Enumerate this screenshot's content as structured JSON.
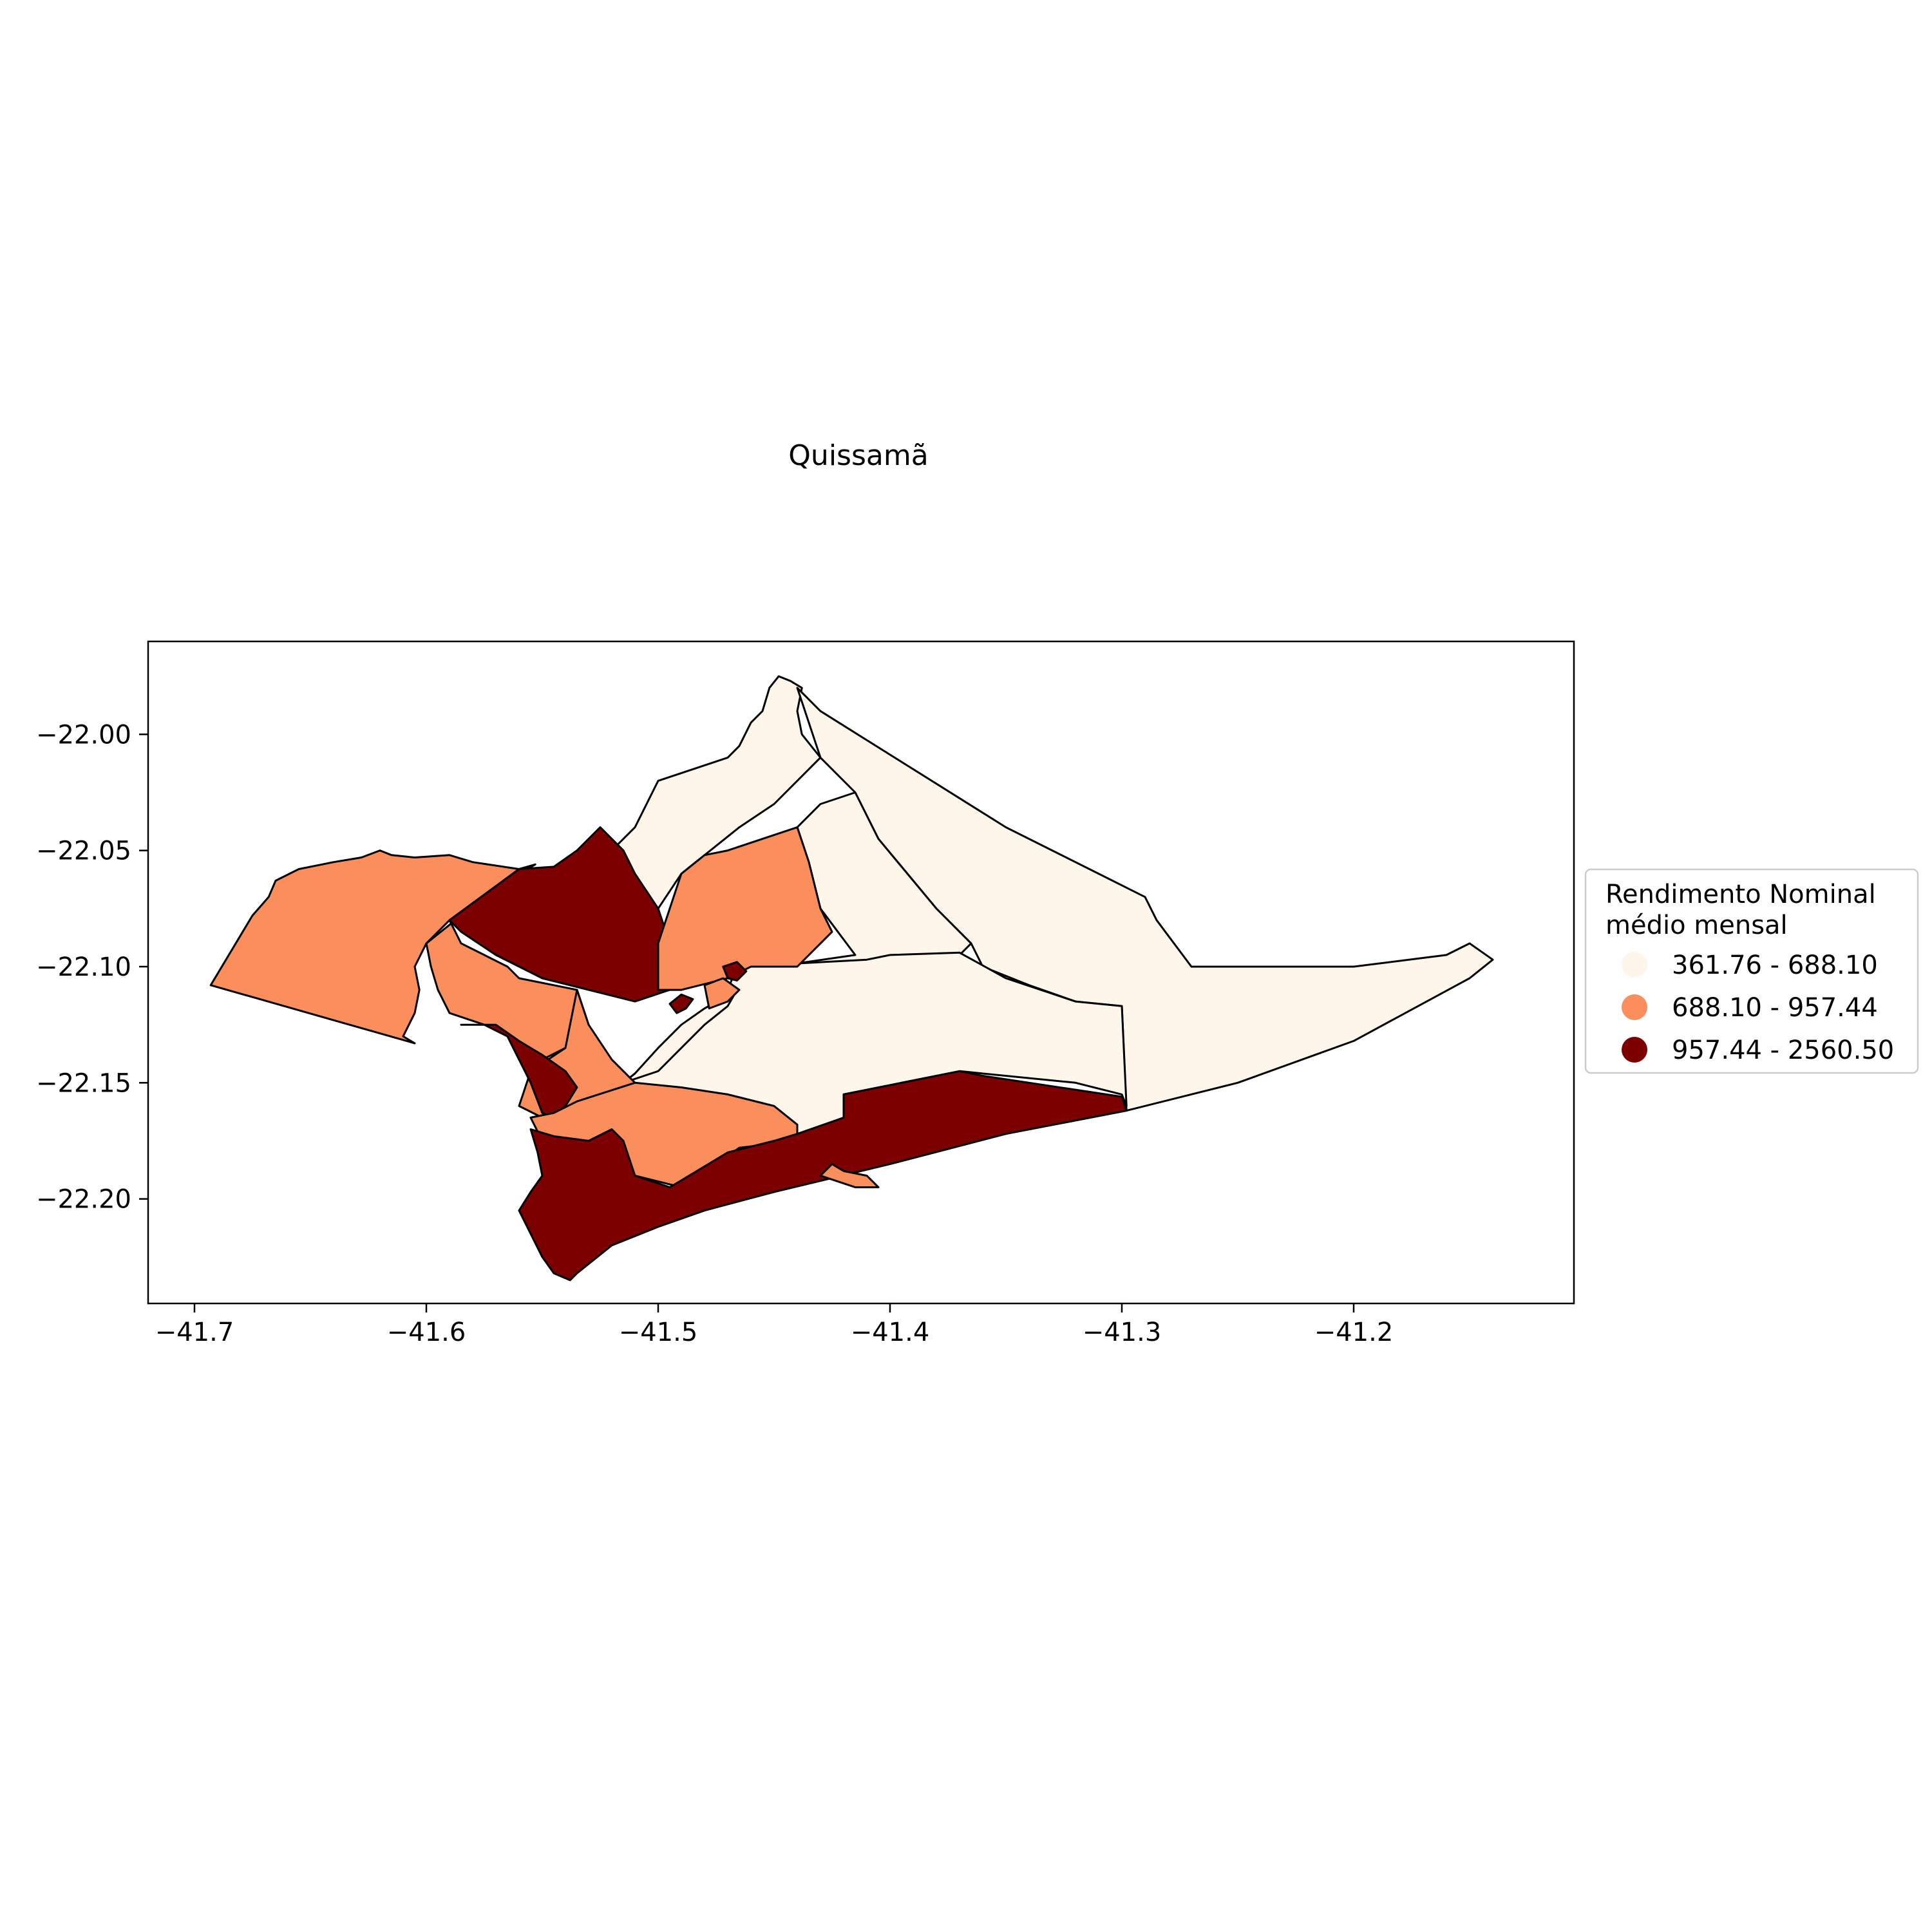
{
  "title": "Quissamã",
  "chart_data": {
    "type": "choropleth",
    "title": "Quissamã",
    "xlabel": "",
    "ylabel": "",
    "xlim": [
      -41.72,
      -41.105
    ],
    "ylim": [
      -22.245,
      -21.96
    ],
    "x_ticks": [
      {
        "value": -41.7,
        "label": "−41.7"
      },
      {
        "value": -41.6,
        "label": "−41.6"
      },
      {
        "value": -41.5,
        "label": "−41.5"
      },
      {
        "value": -41.4,
        "label": "−41.4"
      },
      {
        "value": -41.3,
        "label": "−41.3"
      },
      {
        "value": -41.2,
        "label": "−41.2"
      }
    ],
    "y_ticks": [
      {
        "value": -22.0,
        "label": "−22.00"
      },
      {
        "value": -22.05,
        "label": "−22.05"
      },
      {
        "value": -22.1,
        "label": "−22.10"
      },
      {
        "value": -22.15,
        "label": "−22.15"
      },
      {
        "value": -22.2,
        "label": "−22.20"
      }
    ],
    "grid": false,
    "legend": {
      "title": "Rendimento Nominal\nmédio mensal",
      "placement": "right",
      "entries": [
        {
          "label": "361.76 - 688.10",
          "color": "#fef6eb"
        },
        {
          "label": "688.10 - 957.44",
          "color": "#fa8f5d"
        },
        {
          "label": "957.44 - 2560.50",
          "color": "#7d0000"
        }
      ]
    },
    "regions": [
      {
        "class": 0,
        "coords": [
          [
            -41.51,
            -22.04
          ],
          [
            -41.5,
            -22.02
          ],
          [
            -41.47,
            -22.01
          ],
          [
            -41.465,
            -22.005
          ],
          [
            -41.46,
            -21.995
          ],
          [
            -41.455,
            -21.99
          ],
          [
            -41.452,
            -21.98
          ],
          [
            -41.448,
            -21.975
          ],
          [
            -41.443,
            -21.977
          ],
          [
            -41.438,
            -21.98
          ],
          [
            -41.44,
            -21.99
          ],
          [
            -41.438,
            -22.0
          ],
          [
            -41.43,
            -22.01
          ],
          [
            -41.45,
            -22.03
          ],
          [
            -41.465,
            -22.04
          ],
          [
            -41.49,
            -22.06
          ],
          [
            -41.5,
            -22.075
          ],
          [
            -41.52,
            -22.05
          ]
        ]
      },
      {
        "class": 0,
        "coords": [
          [
            -41.43,
            -22.01
          ],
          [
            -41.415,
            -22.025
          ],
          [
            -41.41,
            -22.035
          ],
          [
            -41.405,
            -22.045
          ],
          [
            -41.38,
            -22.075
          ],
          [
            -41.365,
            -22.09
          ],
          [
            -41.36,
            -22.1
          ],
          [
            -41.34,
            -22.108
          ],
          [
            -41.32,
            -22.115
          ],
          [
            -41.3,
            -22.117
          ],
          [
            -41.298,
            -22.162
          ],
          [
            -41.25,
            -22.15
          ],
          [
            -41.2,
            -22.132
          ],
          [
            -41.15,
            -22.105
          ],
          [
            -41.14,
            -22.097
          ],
          [
            -41.15,
            -22.09
          ],
          [
            -41.16,
            -22.095
          ],
          [
            -41.2,
            -22.1
          ],
          [
            -41.25,
            -22.1
          ],
          [
            -41.27,
            -22.1
          ],
          [
            -41.285,
            -22.08
          ],
          [
            -41.29,
            -22.07
          ],
          [
            -41.35,
            -22.04
          ],
          [
            -41.43,
            -21.99
          ],
          [
            -41.44,
            -21.98
          ]
        ]
      },
      {
        "class": 0,
        "coords": [
          [
            -41.43,
            -22.03
          ],
          [
            -41.44,
            -22.04
          ],
          [
            -41.44,
            -22.04
          ],
          [
            -41.435,
            -22.055
          ],
          [
            -41.43,
            -22.075
          ],
          [
            -41.415,
            -22.095
          ],
          [
            -41.45,
            -22.1
          ],
          [
            -41.46,
            -22.1
          ],
          [
            -41.41,
            -22.1
          ],
          [
            -41.4,
            -22.1
          ],
          [
            -41.37,
            -22.095
          ],
          [
            -41.365,
            -22.09
          ],
          [
            -41.38,
            -22.075
          ],
          [
            -41.405,
            -22.045
          ],
          [
            -41.41,
            -22.035
          ],
          [
            -41.415,
            -22.025
          ]
        ]
      },
      {
        "class": 0,
        "coords": [
          [
            -41.466,
            -22.1
          ],
          [
            -41.41,
            -22.097
          ],
          [
            -41.4,
            -22.095
          ],
          [
            -41.37,
            -22.094
          ],
          [
            -41.35,
            -22.105
          ],
          [
            -41.32,
            -22.115
          ],
          [
            -41.3,
            -22.117
          ],
          [
            -41.298,
            -22.16
          ],
          [
            -41.3,
            -22.155
          ],
          [
            -41.32,
            -22.15
          ],
          [
            -41.37,
            -22.145
          ],
          [
            -41.42,
            -22.155
          ],
          [
            -41.42,
            -22.165
          ],
          [
            -41.43,
            -22.175
          ],
          [
            -41.44,
            -22.175
          ],
          [
            -41.46,
            -22.17
          ],
          [
            -41.49,
            -22.16
          ],
          [
            -41.5,
            -22.152
          ],
          [
            -41.515,
            -22.15
          ],
          [
            -41.49,
            -22.13
          ],
          [
            -41.47,
            -22.11
          ]
        ]
      },
      {
        "class": 0,
        "coords": [
          [
            -41.515,
            -22.15
          ],
          [
            -41.51,
            -22.146
          ],
          [
            -41.5,
            -22.135
          ],
          [
            -41.49,
            -22.125
          ],
          [
            -41.48,
            -22.118
          ],
          [
            -41.466,
            -22.11
          ],
          [
            -41.47,
            -22.117
          ],
          [
            -41.48,
            -22.125
          ],
          [
            -41.49,
            -22.135
          ],
          [
            -41.5,
            -22.145
          ]
        ]
      },
      {
        "class": 1,
        "coords": [
          [
            -41.693,
            -22.108
          ],
          [
            -41.675,
            -22.078
          ],
          [
            -41.668,
            -22.07
          ],
          [
            -41.665,
            -22.063
          ],
          [
            -41.655,
            -22.058
          ],
          [
            -41.64,
            -22.055
          ],
          [
            -41.628,
            -22.053
          ],
          [
            -41.62,
            -22.05
          ],
          [
            -41.615,
            -22.052
          ],
          [
            -41.605,
            -22.053
          ],
          [
            -41.59,
            -22.052
          ],
          [
            -41.58,
            -22.055
          ],
          [
            -41.56,
            -22.058
          ],
          [
            -41.553,
            -22.056
          ],
          [
            -41.56,
            -22.06
          ],
          [
            -41.59,
            -22.08
          ],
          [
            -41.6,
            -22.09
          ],
          [
            -41.605,
            -22.1
          ],
          [
            -41.603,
            -22.11
          ],
          [
            -41.605,
            -22.12
          ],
          [
            -41.61,
            -22.13
          ],
          [
            -41.605,
            -22.133
          ]
        ]
      },
      {
        "class": 1,
        "coords": [
          [
            -41.56,
            -22.058
          ],
          [
            -41.59,
            -22.08
          ],
          [
            -41.585,
            -22.09
          ],
          [
            -41.575,
            -22.095
          ],
          [
            -41.565,
            -22.1
          ],
          [
            -41.56,
            -22.105
          ],
          [
            -41.545,
            -22.108
          ],
          [
            -41.535,
            -22.11
          ],
          [
            -41.53,
            -22.125
          ],
          [
            -41.54,
            -22.135
          ],
          [
            -41.55,
            -22.14
          ],
          [
            -41.555,
            -22.145
          ],
          [
            -41.56,
            -22.14
          ],
          [
            -41.565,
            -22.13
          ],
          [
            -41.575,
            -22.125
          ],
          [
            -41.59,
            -22.12
          ],
          [
            -41.595,
            -22.11
          ],
          [
            -41.598,
            -22.1
          ],
          [
            -41.6,
            -22.09
          ]
        ]
      },
      {
        "class": 2,
        "coords": [
          [
            -41.59,
            -22.08
          ],
          [
            -41.56,
            -22.058
          ],
          [
            -41.545,
            -22.057
          ],
          [
            -41.535,
            -22.05
          ],
          [
            -41.525,
            -22.04
          ],
          [
            -41.515,
            -22.05
          ],
          [
            -41.51,
            -22.06
          ],
          [
            -41.5,
            -22.075
          ],
          [
            -41.495,
            -22.09
          ],
          [
            -41.49,
            -22.1
          ],
          [
            -41.495,
            -22.11
          ],
          [
            -41.51,
            -22.115
          ],
          [
            -41.53,
            -22.11
          ],
          [
            -41.55,
            -22.105
          ],
          [
            -41.57,
            -22.095
          ],
          [
            -41.585,
            -22.085
          ]
        ]
      },
      {
        "class": 1,
        "coords": [
          [
            -41.47,
            -22.05
          ],
          [
            -41.44,
            -22.04
          ],
          [
            -41.435,
            -22.055
          ],
          [
            -41.43,
            -22.075
          ],
          [
            -41.425,
            -22.085
          ],
          [
            -41.44,
            -22.1
          ],
          [
            -41.46,
            -22.1
          ],
          [
            -41.47,
            -22.105
          ],
          [
            -41.49,
            -22.11
          ],
          [
            -41.5,
            -22.11
          ],
          [
            -41.5,
            -22.09
          ],
          [
            -41.495,
            -22.075
          ],
          [
            -41.49,
            -22.06
          ],
          [
            -41.48,
            -22.052
          ]
        ]
      },
      {
        "class": 1,
        "coords": [
          [
            -41.535,
            -22.11
          ],
          [
            -41.53,
            -22.125
          ],
          [
            -41.52,
            -22.14
          ],
          [
            -41.51,
            -22.15
          ],
          [
            -41.495,
            -22.155
          ],
          [
            -41.47,
            -22.155
          ],
          [
            -41.45,
            -22.16
          ],
          [
            -41.44,
            -22.17
          ],
          [
            -41.48,
            -22.18
          ],
          [
            -41.5,
            -22.18
          ],
          [
            -41.53,
            -22.175
          ],
          [
            -41.55,
            -22.165
          ],
          [
            -41.56,
            -22.16
          ],
          [
            -41.555,
            -22.145
          ],
          [
            -41.54,
            -22.135
          ]
        ]
      },
      {
        "class": 2,
        "coords": [
          [
            -41.585,
            -22.125
          ],
          [
            -41.575,
            -22.125
          ],
          [
            -41.565,
            -22.13
          ],
          [
            -41.56,
            -22.14
          ],
          [
            -41.555,
            -22.15
          ],
          [
            -41.55,
            -22.163
          ],
          [
            -41.545,
            -22.165
          ],
          [
            -41.54,
            -22.16
          ],
          [
            -41.535,
            -22.152
          ],
          [
            -41.54,
            -22.145
          ],
          [
            -41.55,
            -22.138
          ],
          [
            -41.56,
            -22.132
          ],
          [
            -41.57,
            -22.125
          ]
        ]
      },
      {
        "class": 1,
        "coords": [
          [
            -41.555,
            -22.165
          ],
          [
            -41.545,
            -22.163
          ],
          [
            -41.535,
            -22.158
          ],
          [
            -41.51,
            -22.15
          ],
          [
            -41.49,
            -22.152
          ],
          [
            -41.47,
            -22.155
          ],
          [
            -41.45,
            -22.16
          ],
          [
            -41.44,
            -22.168
          ],
          [
            -41.44,
            -22.175
          ],
          [
            -41.465,
            -22.178
          ],
          [
            -41.49,
            -22.195
          ],
          [
            -41.51,
            -22.19
          ],
          [
            -41.53,
            -22.18
          ],
          [
            -41.55,
            -22.175
          ]
        ]
      },
      {
        "class": 2,
        "coords": [
          [
            -41.555,
            -22.17
          ],
          [
            -41.545,
            -22.173
          ],
          [
            -41.53,
            -22.175
          ],
          [
            -41.52,
            -22.17
          ],
          [
            -41.515,
            -22.175
          ],
          [
            -41.51,
            -22.19
          ],
          [
            -41.495,
            -22.195
          ],
          [
            -41.47,
            -22.18
          ],
          [
            -41.45,
            -22.175
          ],
          [
            -41.44,
            -22.172
          ],
          [
            -41.42,
            -22.165
          ],
          [
            -41.42,
            -22.155
          ],
          [
            -41.37,
            -22.145
          ],
          [
            -41.36,
            -22.147
          ],
          [
            -41.3,
            -22.156
          ],
          [
            -41.298,
            -22.162
          ],
          [
            -41.35,
            -22.172
          ],
          [
            -41.4,
            -22.185
          ],
          [
            -41.45,
            -22.197
          ],
          [
            -41.48,
            -22.205
          ],
          [
            -41.5,
            -22.212
          ],
          [
            -41.52,
            -22.22
          ],
          [
            -41.535,
            -22.232
          ],
          [
            -41.538,
            -22.235
          ],
          [
            -41.545,
            -22.232
          ],
          [
            -41.55,
            -22.225
          ],
          [
            -41.555,
            -22.215
          ],
          [
            -41.56,
            -22.205
          ],
          [
            -41.555,
            -22.197
          ],
          [
            -41.55,
            -22.19
          ],
          [
            -41.552,
            -22.18
          ]
        ]
      },
      {
        "class": 1,
        "coords": [
          [
            -41.43,
            -22.19
          ],
          [
            -41.425,
            -22.185
          ],
          [
            -41.42,
            -22.188
          ],
          [
            -41.41,
            -22.19
          ],
          [
            -41.405,
            -22.195
          ],
          [
            -41.415,
            -22.195
          ]
        ]
      },
      {
        "class": 1,
        "coords": [
          [
            -41.48,
            -22.108
          ],
          [
            -41.472,
            -22.105
          ],
          [
            -41.465,
            -22.11
          ],
          [
            -41.47,
            -22.115
          ],
          [
            -41.478,
            -22.118
          ]
        ]
      },
      {
        "class": 2,
        "coords": [
          [
            -41.472,
            -22.1
          ],
          [
            -41.466,
            -22.098
          ],
          [
            -41.462,
            -22.102
          ],
          [
            -41.466,
            -22.106
          ],
          [
            -41.47,
            -22.105
          ]
        ]
      },
      {
        "class": 2,
        "coords": [
          [
            -41.495,
            -22.116
          ],
          [
            -41.49,
            -22.112
          ],
          [
            -41.485,
            -22.114
          ],
          [
            -41.488,
            -22.118
          ],
          [
            -41.492,
            -22.12
          ]
        ]
      }
    ]
  }
}
